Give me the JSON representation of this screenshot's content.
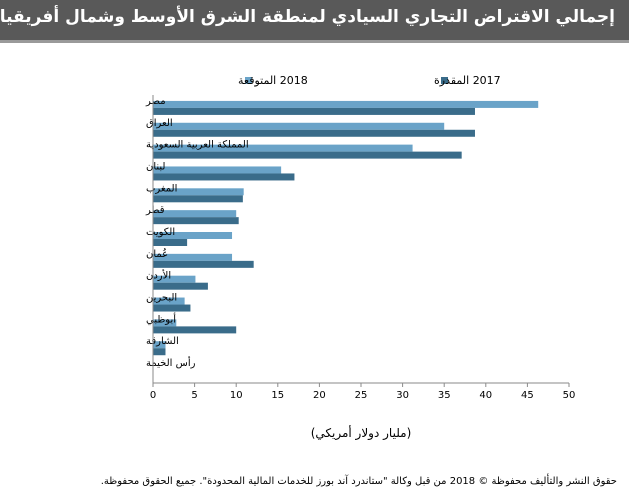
{
  "header": {
    "title": "إجمالي الاقتراض التجاري السيادي لمنطقة الشرق الأوسط وشمال أفريقيا"
  },
  "footer": {
    "copyright": "حقوق النشر والتأليف محفوظة © 2018 من قبل وكالة \"ستاندرد آند بورز للخدمات المالية المحدودة\". جميع الحقوق محفوظة."
  },
  "chart_data": {
    "type": "bar",
    "orientation": "horizontal",
    "categories": [
      "مصر",
      "العراق",
      "المملكة العربية السعودية",
      "لبنان",
      "المغرب",
      "قطر",
      "الكويت",
      "عُمان",
      "الأردن",
      "البحرين",
      "أبوظبي",
      "الشارقة",
      "رأس الخيمة"
    ],
    "series": [
      {
        "name": "2018 المتوقعة",
        "color": "#6aa3c8",
        "values": [
          46.3,
          35.0,
          31.2,
          15.4,
          10.9,
          10.0,
          9.5,
          9.5,
          5.1,
          3.8,
          2.8,
          1.5,
          0
        ]
      },
      {
        "name": "2017 المقدرة",
        "color": "#3a6c8a",
        "values": [
          38.7,
          38.7,
          37.1,
          17.0,
          10.8,
          10.3,
          4.1,
          12.1,
          6.6,
          4.5,
          10.0,
          1.5,
          0
        ]
      }
    ],
    "xlabel": "(مليار دولار أمريكي)",
    "xlim": [
      0,
      50
    ],
    "xticks": [
      0,
      5,
      10,
      15,
      20,
      25,
      30,
      35,
      40,
      45,
      50
    ],
    "grid": false,
    "legend_position": "top"
  }
}
